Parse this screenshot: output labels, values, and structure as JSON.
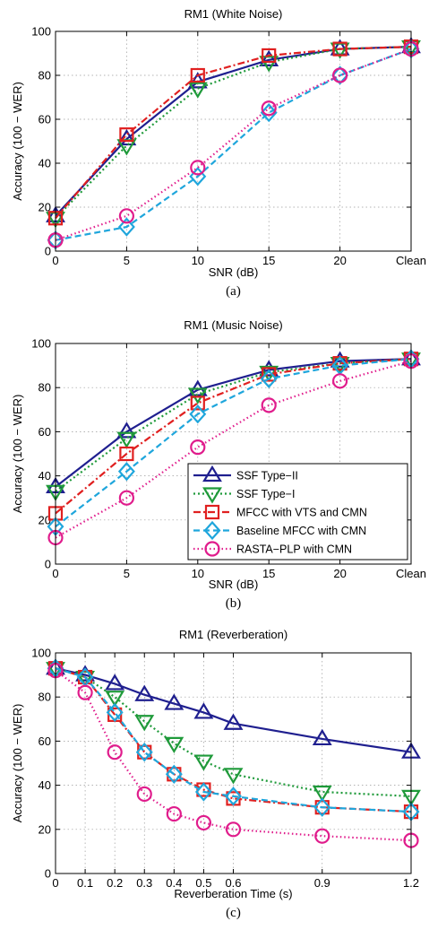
{
  "series_styles": [
    {
      "color": "#1f1f8f",
      "marker": "triangle-up",
      "dash": ""
    },
    {
      "color": "#1f9a3a",
      "marker": "triangle-down",
      "dash": "2,3"
    },
    {
      "color": "#e02020",
      "marker": "square",
      "dash": "8,3,2,3"
    },
    {
      "color": "#1fa6dc",
      "marker": "diamond",
      "dash": "7,4"
    },
    {
      "color": "#e01c8c",
      "marker": "circle",
      "dash": "1.5,3"
    }
  ],
  "chart_data": [
    {
      "type": "line",
      "title": "RM1 (White Noise)",
      "xlabel": "SNR (dB)",
      "ylabel": "Accuracy (100 − WER)",
      "caption": "(a)",
      "categories": [
        "0",
        "5",
        "10",
        "15",
        "20",
        "Clean"
      ],
      "ylim": [
        0,
        100
      ],
      "yticks": [
        "0",
        "20",
        "40",
        "60",
        "80",
        "100"
      ],
      "grid": true,
      "series": [
        {
          "values": [
            16,
            51,
            77,
            87,
            92,
            93
          ]
        },
        {
          "values": [
            15,
            48,
            74,
            86,
            92,
            93
          ]
        },
        {
          "values": [
            15,
            53,
            80,
            89,
            92,
            93
          ]
        },
        {
          "values": [
            5,
            11,
            34,
            63,
            80,
            92
          ]
        },
        {
          "values": [
            5,
            16,
            38,
            65,
            80,
            92
          ]
        }
      ]
    },
    {
      "type": "line",
      "title": "RM1 (Music Noise)",
      "xlabel": "SNR (dB)",
      "ylabel": "Accuracy (100 − WER)",
      "caption": "(b)",
      "categories": [
        "0",
        "5",
        "10",
        "15",
        "20",
        "Clean"
      ],
      "ylim": [
        0,
        100
      ],
      "yticks": [
        "0",
        "20",
        "40",
        "60",
        "80",
        "100"
      ],
      "grid": true,
      "legend_position": "bottom-right",
      "series": [
        {
          "name": "SSF Type−II",
          "values": [
            35,
            60,
            79,
            88,
            92,
            93
          ]
        },
        {
          "name": "SSF Type−I",
          "values": [
            33,
            57,
            77,
            87,
            91,
            93
          ]
        },
        {
          "name": "MFCC with VTS and CMN",
          "values": [
            23,
            50,
            73,
            86,
            91,
            93
          ]
        },
        {
          "name": "Baseline MFCC with CMN",
          "values": [
            17,
            42,
            68,
            84,
            90,
            93
          ]
        },
        {
          "name": "RASTA−PLP with CMN",
          "values": [
            12,
            30,
            53,
            72,
            83,
            92
          ]
        }
      ]
    },
    {
      "type": "line",
      "title": "RM1 (Reverberation)",
      "xlabel": "Reverberation Time (s)",
      "ylabel": "Accuracy (100 − WER)",
      "caption": "(c)",
      "x": [
        0,
        0.1,
        0.2,
        0.3,
        0.4,
        0.5,
        0.6,
        0.9,
        1.2
      ],
      "xticks": [
        "0",
        "0.1",
        "0.2",
        "0.3",
        "0.4",
        "0.5",
        "0.6",
        "0.9",
        "1.2"
      ],
      "xlim": [
        0,
        1.2
      ],
      "ylim": [
        0,
        100
      ],
      "yticks": [
        "0",
        "20",
        "40",
        "60",
        "80",
        "100"
      ],
      "grid": true,
      "series": [
        {
          "values": [
            93,
            90,
            86,
            81,
            77,
            73,
            68,
            61,
            55
          ]
        },
        {
          "values": [
            93,
            89,
            80,
            69,
            59,
            51,
            45,
            37,
            35
          ]
        },
        {
          "values": [
            93,
            89,
            72,
            55,
            45,
            38,
            34,
            30,
            28
          ]
        },
        {
          "values": [
            93,
            89,
            73,
            55,
            45,
            37,
            35,
            30,
            28
          ]
        },
        {
          "values": [
            92,
            82,
            55,
            36,
            27,
            23,
            20,
            17,
            15
          ]
        }
      ]
    }
  ]
}
